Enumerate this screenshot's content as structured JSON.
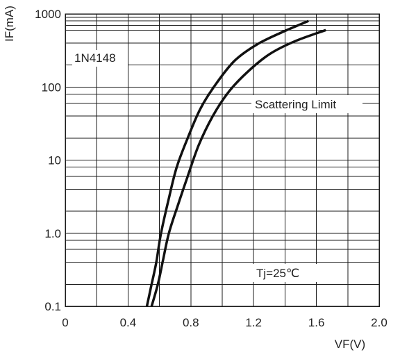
{
  "chart_data": {
    "type": "line",
    "xlabel": "VF(V)",
    "ylabel": "IF(mA)",
    "xlim": [
      0,
      2.0
    ],
    "ylim": [
      0.1,
      1000
    ],
    "y_scale": "log",
    "grid": true,
    "x_ticks": [
      "0",
      "0.4",
      "0.8",
      "1.2",
      "1.6",
      "2.0"
    ],
    "y_ticks": [
      "0.1",
      "1.0",
      "10",
      "100",
      "1000"
    ],
    "annotations": {
      "device": "1N4148",
      "band": "Scattering Limit",
      "condition": "Tj=25℃"
    },
    "series": [
      {
        "x": [
          0.52,
          0.55,
          0.58,
          0.61,
          0.66,
          0.71,
          0.78,
          0.86,
          0.96,
          1.08,
          1.22,
          1.38,
          1.55
        ],
        "y": [
          0.1,
          0.2,
          0.4,
          1.0,
          3.0,
          8.0,
          20,
          50,
          110,
          230,
          380,
          560,
          800
        ]
      },
      {
        "x": [
          0.55,
          0.59,
          0.62,
          0.66,
          0.72,
          0.78,
          0.85,
          0.94,
          1.04,
          1.16,
          1.3,
          1.46,
          1.66
        ],
        "y": [
          0.1,
          0.2,
          0.4,
          1.0,
          2.5,
          6.0,
          16,
          40,
          85,
          160,
          280,
          420,
          600
        ]
      }
    ]
  }
}
